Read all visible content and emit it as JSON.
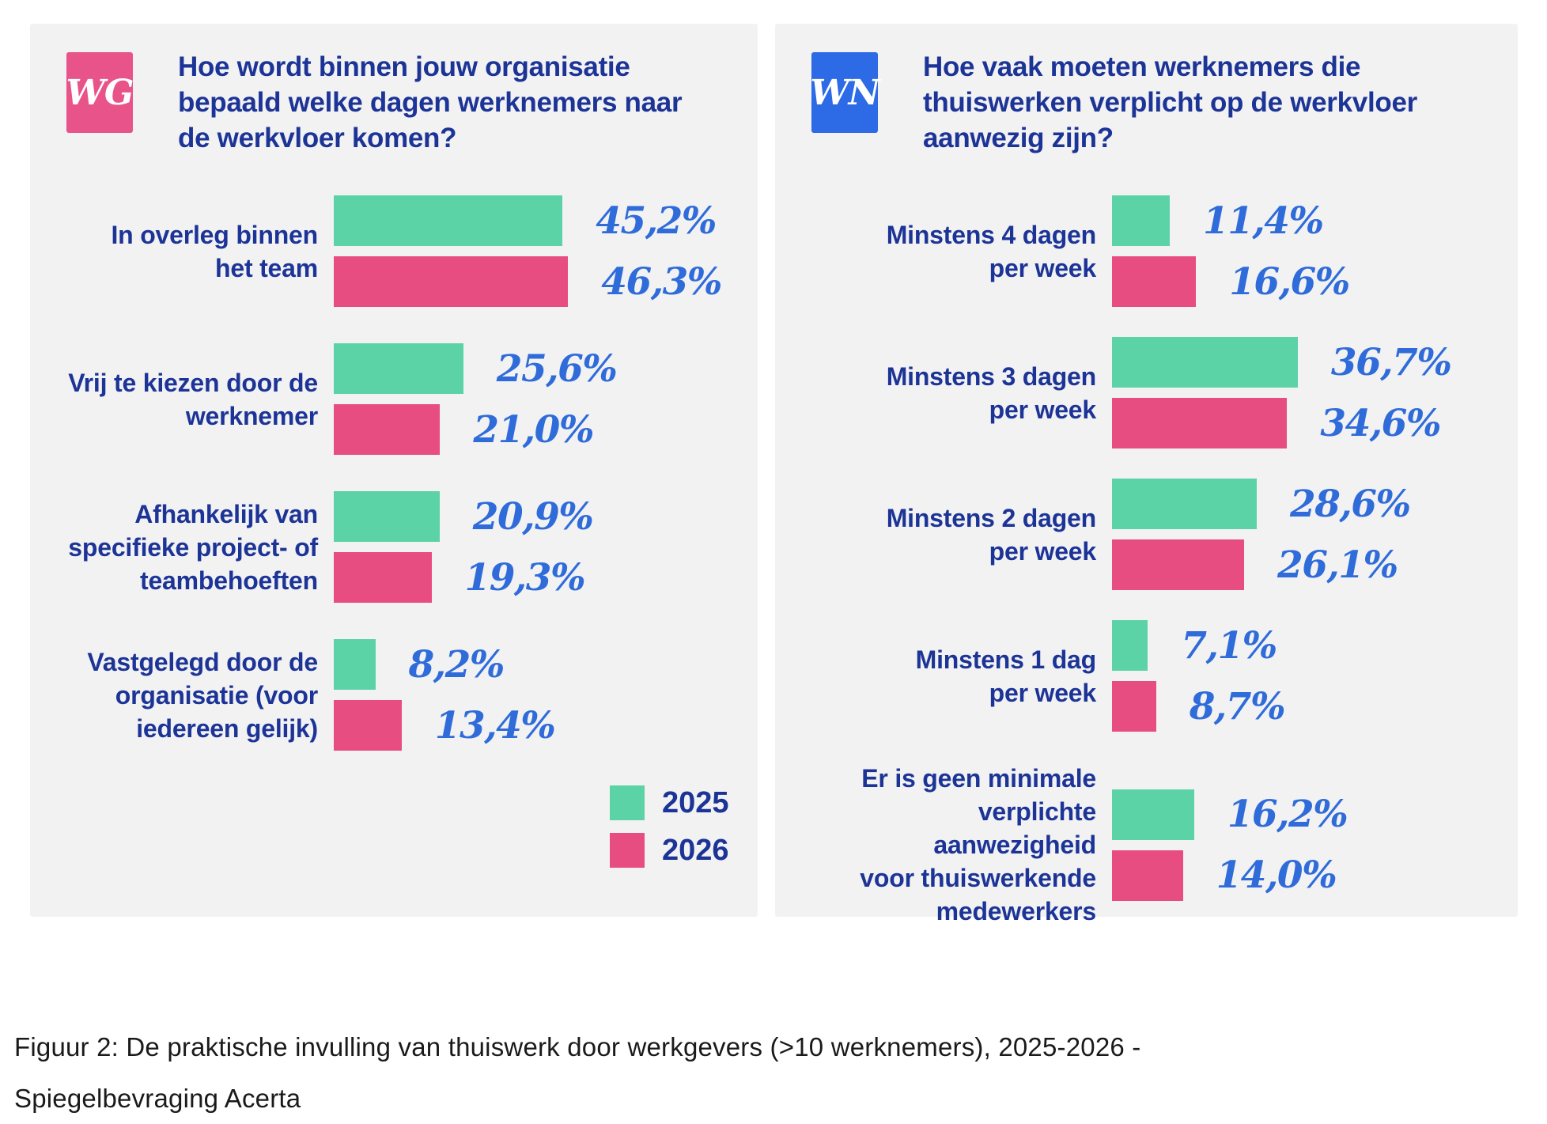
{
  "colors": {
    "green_2025": "#5cd3a6",
    "pink_2026": "#e84d82",
    "badge_wg": "#e8538a",
    "badge_wn": "#2c6be5",
    "percent_blue": "#2f6cda",
    "navy_text": "#1d3497",
    "panel_bg": "#f2f2f3"
  },
  "caption": {
    "lines": [
      "Figuur 2: De praktische invulling van thuiswerk door werkgevers (>10 werknemers), 2025-2026 -",
      "Spiegelbevraging Acerta"
    ]
  },
  "chart_data": [
    {
      "type": "bar",
      "orientation": "horizontal",
      "key": "wg",
      "badge": {
        "label": "WG",
        "color": "#e8538a"
      },
      "title": "Hoe wordt binnen jouw organisatie bepaald welke dagen werknemers naar de werkvloer komen?",
      "title_lines": [
        "Hoe wordt binnen jouw organisatie",
        "bepaald welke dagen werknemers naar",
        "de werkvloer komen?"
      ],
      "categories": [
        [
          "In overleg binnen",
          "het team"
        ],
        [
          "Vrij te kiezen door de",
          "werknemer"
        ],
        [
          "Afhankelijk van",
          "specifieke project- of",
          "teambehoeften"
        ],
        [
          "Vastgelegd door de",
          "organisatie (voor",
          "iedereen gelijk)"
        ]
      ],
      "series": [
        {
          "name": "2025",
          "color_key": "green_2025",
          "values": [
            45.2,
            25.6,
            20.9,
            8.2
          ]
        },
        {
          "name": "2026",
          "color_key": "pink_2026",
          "values": [
            46.3,
            21.0,
            19.3,
            13.4
          ]
        }
      ],
      "value_labels": [
        [
          "45,2%",
          "46,3%"
        ],
        [
          "25,6%",
          "21,0%"
        ],
        [
          "20,9%",
          "19,3%"
        ],
        [
          "8,2%",
          "13,4%"
        ]
      ],
      "xlim": [
        0,
        50
      ],
      "grid": false,
      "legend": {
        "entries": [
          "2025",
          "2026"
        ],
        "position": "bottom-right"
      }
    },
    {
      "type": "bar",
      "orientation": "horizontal",
      "key": "wn",
      "badge": {
        "label": "WN",
        "color": "#2c6be5"
      },
      "title": "Hoe vaak moeten werknemers die thuiswerken verplicht op de werkvloer aanwezig zijn?",
      "title_lines": [
        "Hoe vaak moeten werknemers die",
        "thuiswerken verplicht op de werkvloer",
        "aanwezig zijn?"
      ],
      "categories": [
        [
          "Minstens 4 dagen",
          "per week"
        ],
        [
          "Minstens 3 dagen",
          "per week"
        ],
        [
          "Minstens 2 dagen",
          "per week"
        ],
        [
          "Minstens 1 dag",
          "per week"
        ],
        [
          "Er is geen minimale",
          "verplichte aanwezigheid",
          "voor thuiswerkende",
          "medewerkers"
        ]
      ],
      "series": [
        {
          "name": "2025",
          "color_key": "green_2025",
          "values": [
            11.4,
            36.7,
            28.6,
            7.1,
            16.2
          ]
        },
        {
          "name": "2026",
          "color_key": "pink_2026",
          "values": [
            16.6,
            34.6,
            26.1,
            8.7,
            14.0
          ]
        }
      ],
      "value_labels": [
        [
          "11,4%",
          "16,6%"
        ],
        [
          "36,7%",
          "34,6%"
        ],
        [
          "28,6%",
          "26,1%"
        ],
        [
          "7,1%",
          "8,7%"
        ],
        [
          "16,2%",
          "14,0%"
        ]
      ],
      "xlim": [
        0,
        50
      ],
      "grid": false,
      "legend": null
    }
  ]
}
